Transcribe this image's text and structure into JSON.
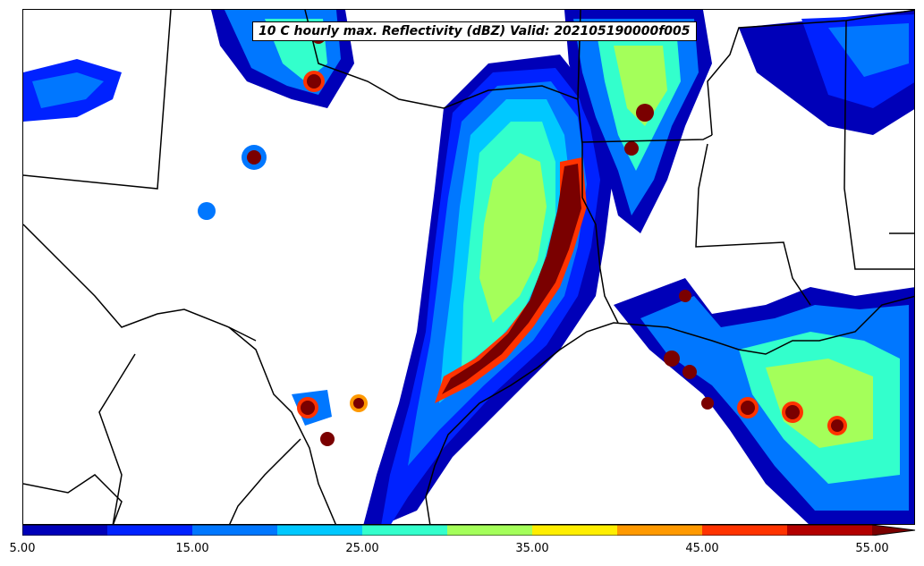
{
  "title": "10 C hourly max. Reflectivity (dBZ) Valid: 202105190000f005",
  "colorbar": {
    "tick_labels": [
      "5.00",
      "15.00",
      "25.00",
      "35.00",
      "45.00",
      "55.00"
    ],
    "colors": [
      "#0000b8",
      "#0022ff",
      "#0077ff",
      "#00c8ff",
      "#33ffcc",
      "#a4ff5a",
      "#ffee00",
      "#ff9900",
      "#ff3300",
      "#b30000",
      "#7a0000"
    ],
    "extend": "max"
  },
  "legend_levels": [
    5,
    10,
    15,
    20,
    25,
    30,
    35,
    40,
    45,
    50,
    55
  ]
}
